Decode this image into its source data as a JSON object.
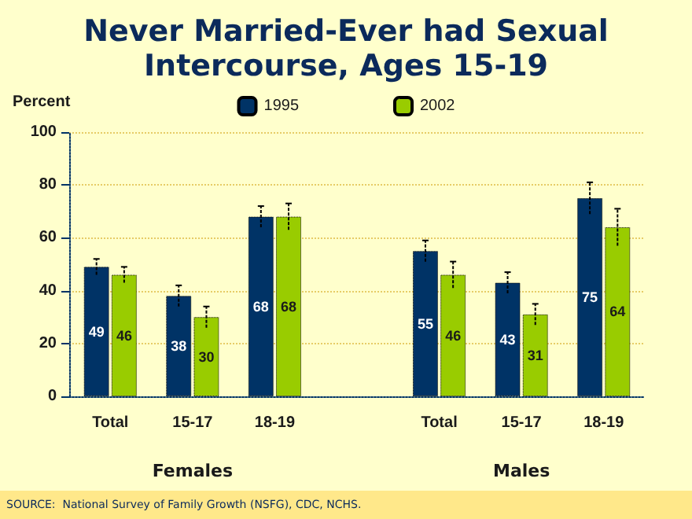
{
  "chart_data": {
    "type": "bar",
    "title": "Never Married-Ever had Sexual\nIntercourse, Ages 15-19",
    "ylabel": "Percent",
    "categories": [
      "Total",
      "15-17",
      "18-19",
      null,
      "Total",
      "15-17",
      "18-19"
    ],
    "series": [
      {
        "name": "1995",
        "color": "#003366",
        "values": [
          49,
          38,
          68,
          null,
          55,
          43,
          75
        ],
        "errors": [
          3,
          4,
          4,
          null,
          4,
          4,
          6
        ]
      },
      {
        "name": "2002",
        "color": "#99cc00",
        "values": [
          46,
          30,
          68,
          null,
          46,
          31,
          64
        ],
        "errors": [
          3,
          4,
          5,
          null,
          5,
          4,
          7
        ]
      }
    ],
    "ylim": [
      0,
      100
    ],
    "yticks": [
      0,
      20,
      40,
      60,
      80,
      100
    ],
    "grid": "y",
    "legend": "top",
    "data_labels": true,
    "annotations": [
      "Females",
      "Males",
      "SOURCE:  National Survey of Family Growth (NSFG), CDC, NCHS."
    ]
  }
}
